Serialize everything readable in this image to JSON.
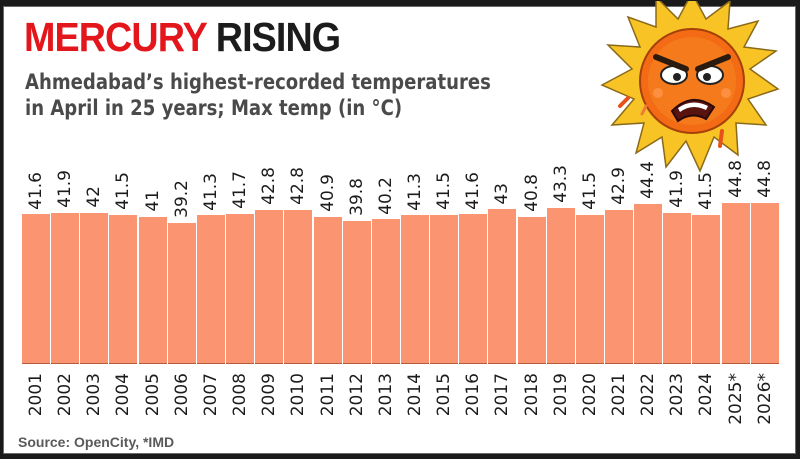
{
  "title": {
    "part1": "MERCURY",
    "part2": "RISING"
  },
  "subtitle": {
    "line1": "Ahmedabad’s highest-recorded temperatures",
    "line2": "in April in 25 years; Max temp (in °C)"
  },
  "source": "Source: OpenCity, *IMD",
  "colors": {
    "title_red": "#e3161c",
    "bar": "#fb9470",
    "text": "#1c1c1c"
  },
  "icon": "angry-sun-icon",
  "chart_data": {
    "type": "bar",
    "title": "MERCURY RISING",
    "subtitle": "Ahmedabad’s highest-recorded temperatures in April in 25 years; Max temp (in °C)",
    "xlabel": "",
    "ylabel": "Max temp (°C)",
    "categories": [
      "2001",
      "2002",
      "2003",
      "2004",
      "2005",
      "2006",
      "2007",
      "2008",
      "2009",
      "2010",
      "2011",
      "2012",
      "2013",
      "2014",
      "2015",
      "2016",
      "2017",
      "2018",
      "2019",
      "2020",
      "2021",
      "2022",
      "2023",
      "2024",
      "2025*",
      "2026*"
    ],
    "labels": [
      "41.6",
      "41.9",
      "42",
      "41.5",
      "41",
      "39.2",
      "41.3",
      "41.7",
      "42.8",
      "42.8",
      "40.9",
      "39.8",
      "40.2",
      "41.3",
      "41.5",
      "41.6",
      "43",
      "40.8",
      "43.3",
      "41.5",
      "42.9",
      "44.4",
      "41.9",
      "41.5",
      "44.8",
      "44.8"
    ],
    "values": [
      41.6,
      41.9,
      42,
      41.5,
      41,
      39.2,
      41.3,
      41.7,
      42.8,
      42.8,
      40.9,
      39.8,
      40.2,
      41.3,
      41.5,
      41.6,
      43,
      40.8,
      43.3,
      41.5,
      42.9,
      44.4,
      41.9,
      41.5,
      44.8,
      44.8
    ],
    "data_labels": true,
    "grid": false,
    "legend": null,
    "annotations": [
      "* IMD"
    ]
  }
}
